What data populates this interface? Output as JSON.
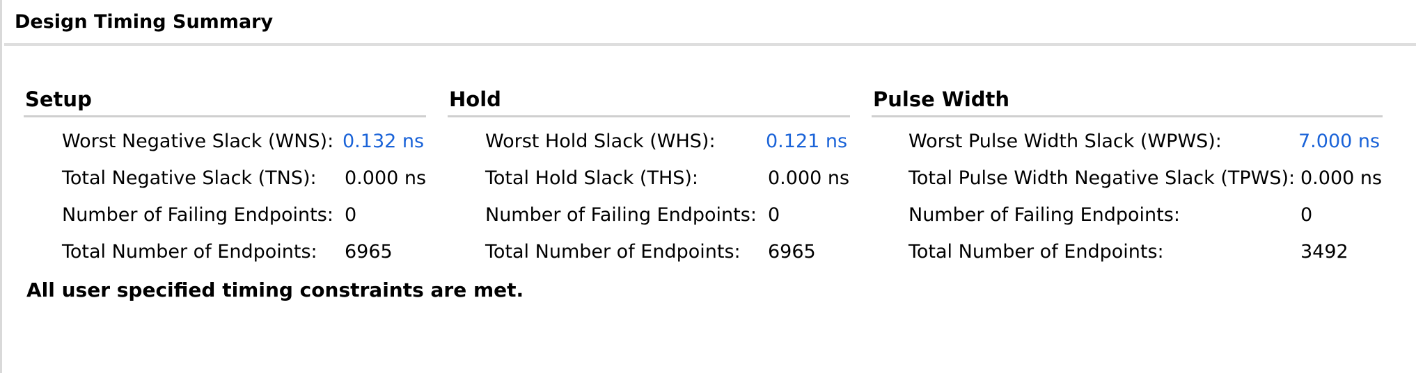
{
  "page_title": "Design Timing Summary",
  "sections": [
    {
      "header": "Setup",
      "rows": [
        {
          "label": "Worst Negative Slack (WNS):",
          "value": "0.132 ns",
          "link": true
        },
        {
          "label": "Total Negative Slack (TNS):",
          "value": "0.000 ns",
          "link": false
        },
        {
          "label": "Number of Failing Endpoints:",
          "value": "0",
          "link": false
        },
        {
          "label": "Total Number of Endpoints:",
          "value": "6965",
          "link": false
        }
      ]
    },
    {
      "header": "Hold",
      "rows": [
        {
          "label": "Worst Hold Slack (WHS):",
          "value": "0.121 ns",
          "link": true
        },
        {
          "label": "Total Hold Slack (THS):",
          "value": "0.000 ns",
          "link": false
        },
        {
          "label": "Number of Failing Endpoints:",
          "value": "0",
          "link": false
        },
        {
          "label": "Total Number of Endpoints:",
          "value": "6965",
          "link": false
        }
      ]
    },
    {
      "header": "Pulse Width",
      "rows": [
        {
          "label": "Worst Pulse Width Slack (WPWS):",
          "value": "7.000 ns",
          "link": true
        },
        {
          "label": "Total Pulse Width Negative Slack (TPWS):",
          "value": "0.000 ns",
          "link": false
        },
        {
          "label": "Number of Failing Endpoints:",
          "value": "0",
          "link": false
        },
        {
          "label": "Total Number of Endpoints:",
          "value": "3492",
          "link": false
        }
      ]
    }
  ],
  "status_message": "All user specified timing constraints are met.",
  "colors": {
    "link": "#1a63d8",
    "divider": "#cfcfcf"
  }
}
